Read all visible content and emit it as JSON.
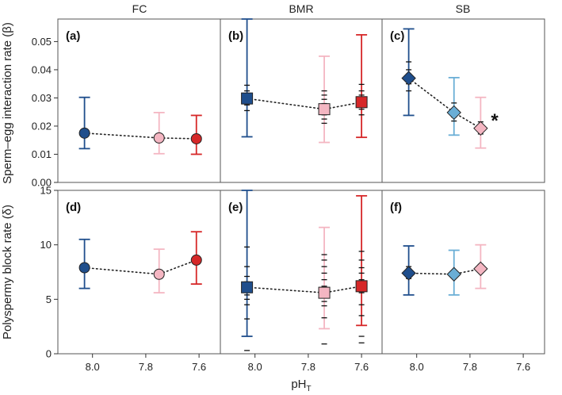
{
  "chart_data": {
    "type": "scatter",
    "xlabel": "pH",
    "xlabel_sub": "T",
    "columns": [
      "FC",
      "BMR",
      "SB"
    ],
    "x_ticks": [
      8.0,
      7.8,
      7.6
    ],
    "x_range": [
      8.13,
      7.52
    ],
    "rows": [
      {
        "ylabel": "Sperm–egg interaction rate (β)",
        "ylim": [
          0,
          0.058
        ],
        "yticks": [
          0.0,
          0.01,
          0.02,
          0.03,
          0.04,
          0.05
        ],
        "ytick_labels": [
          "0.00",
          "0.01",
          "0.02",
          "0.03",
          "0.04",
          "0.05"
        ]
      },
      {
        "ylabel": "Polyspermy block rate (δ)",
        "ylim": [
          0,
          15
        ],
        "yticks": [
          0,
          5,
          10,
          15
        ],
        "ytick_labels": [
          "0",
          "5",
          "10",
          "15"
        ]
      }
    ],
    "colors": {
      "high_ph": "#1f4e8c",
      "mid_ph": "#f4b6c2",
      "low_ph": "#d62728",
      "sb_mid": "#6aaed6",
      "sb_low": "#f4b6c2"
    },
    "panels": [
      {
        "label": "(a)",
        "row": 0,
        "col": 0,
        "marker": "circle",
        "points": [
          {
            "x": 8.03,
            "y": 0.0175,
            "lo": 0.012,
            "hi": 0.0302,
            "color": "#1f4e8c",
            "dashes": [
              0.0168,
              0.0172,
              0.018
            ]
          },
          {
            "x": 7.75,
            "y": 0.0158,
            "lo": 0.0102,
            "hi": 0.0248,
            "color": "#f4b6c2",
            "dashes": [
              0.0152,
              0.0162,
              0.0166
            ]
          },
          {
            "x": 7.61,
            "y": 0.0155,
            "lo": 0.01,
            "hi": 0.0238,
            "color": "#d62728",
            "dashes": [
              0.0148,
              0.0158,
              0.0164
            ]
          }
        ]
      },
      {
        "label": "(b)",
        "row": 0,
        "col": 1,
        "marker": "square",
        "points": [
          {
            "x": 8.03,
            "y": 0.0298,
            "lo": 0.0162,
            "hi": 0.058,
            "color": "#1f4e8c",
            "dashes": [
              0.0255,
              0.0275,
              0.0285,
              0.031,
              0.0325,
              0.0345
            ]
          },
          {
            "x": 7.74,
            "y": 0.026,
            "lo": 0.0142,
            "hi": 0.0448,
            "color": "#f4b6c2",
            "dashes": [
              0.021,
              0.0225,
              0.024,
              0.028,
              0.0295,
              0.031,
              0.0325
            ]
          },
          {
            "x": 7.6,
            "y": 0.0285,
            "lo": 0.016,
            "hi": 0.0524,
            "color": "#d62728",
            "dashes": [
              0.024,
              0.026,
              0.0275,
              0.031,
              0.0325,
              0.0348
            ]
          }
        ]
      },
      {
        "label": "(c)",
        "row": 0,
        "col": 2,
        "marker": "diamond",
        "points": [
          {
            "x": 8.03,
            "y": 0.037,
            "lo": 0.0238,
            "hi": 0.0545,
            "color": "#1f4e8c",
            "dashes": [
              0.0325,
              0.035,
              0.0385,
              0.04,
              0.0428
            ]
          },
          {
            "x": 7.86,
            "y": 0.0248,
            "lo": 0.0168,
            "hi": 0.0372,
            "color": "#6aaed6",
            "dashes": [
              0.0218,
              0.0232,
              0.0262,
              0.0282
            ]
          },
          {
            "x": 7.76,
            "y": 0.0192,
            "lo": 0.0122,
            "hi": 0.0302,
            "color": "#f4b6c2",
            "dashes": [
              0.0172,
              0.0182,
              0.0202,
              0.0215
            ]
          }
        ],
        "annotation": "*"
      },
      {
        "label": "(d)",
        "row": 1,
        "col": 0,
        "marker": "circle",
        "points": [
          {
            "x": 8.03,
            "y": 7.9,
            "lo": 6.0,
            "hi": 10.5,
            "color": "#1f4e8c",
            "dashes": [
              7.6,
              7.8,
              8.1,
              8.2
            ]
          },
          {
            "x": 7.75,
            "y": 7.3,
            "lo": 5.6,
            "hi": 9.6,
            "color": "#f4b6c2",
            "dashes": [
              7.1,
              7.2,
              7.4,
              7.5
            ]
          },
          {
            "x": 7.61,
            "y": 8.6,
            "lo": 6.4,
            "hi": 11.2,
            "color": "#d62728",
            "dashes": [
              8.3,
              8.5,
              8.7,
              8.9
            ]
          }
        ]
      },
      {
        "label": "(e)",
        "row": 1,
        "col": 1,
        "marker": "square",
        "points": [
          {
            "x": 8.03,
            "y": 6.1,
            "lo": 1.6,
            "hi": 15.0,
            "color": "#1f4e8c",
            "dashes": [
              0.3,
              3.2,
              4.5,
              5.0,
              5.4,
              6.6,
              7.1,
              8.0,
              9.8
            ]
          },
          {
            "x": 7.74,
            "y": 5.6,
            "lo": 2.3,
            "hi": 11.6,
            "color": "#f4b6c2",
            "dashes": [
              0.9,
              3.3,
              4.4,
              4.8,
              6.2,
              6.8,
              7.4,
              8.0,
              8.6,
              9.1
            ]
          },
          {
            "x": 7.6,
            "y": 6.2,
            "lo": 2.6,
            "hi": 14.5,
            "color": "#d62728",
            "dashes": [
              1.0,
              1.6,
              3.5,
              4.5,
              5.6,
              6.8,
              7.4,
              7.9,
              8.6,
              9.4
            ]
          }
        ]
      },
      {
        "label": "(f)",
        "row": 1,
        "col": 2,
        "marker": "diamond",
        "points": [
          {
            "x": 8.03,
            "y": 7.4,
            "lo": 5.4,
            "hi": 9.9,
            "color": "#1f4e8c",
            "dashes": [
              6.9,
              7.2,
              7.6,
              7.8,
              8.0
            ]
          },
          {
            "x": 7.86,
            "y": 7.3,
            "lo": 5.4,
            "hi": 9.5,
            "color": "#6aaed6",
            "dashes": [
              7.0,
              7.2,
              7.5,
              7.6
            ]
          },
          {
            "x": 7.76,
            "y": 7.8,
            "lo": 6.0,
            "hi": 10.0,
            "color": "#f4b6c2",
            "dashes": [
              7.5,
              7.7,
              8.0,
              8.2
            ]
          }
        ]
      }
    ]
  }
}
